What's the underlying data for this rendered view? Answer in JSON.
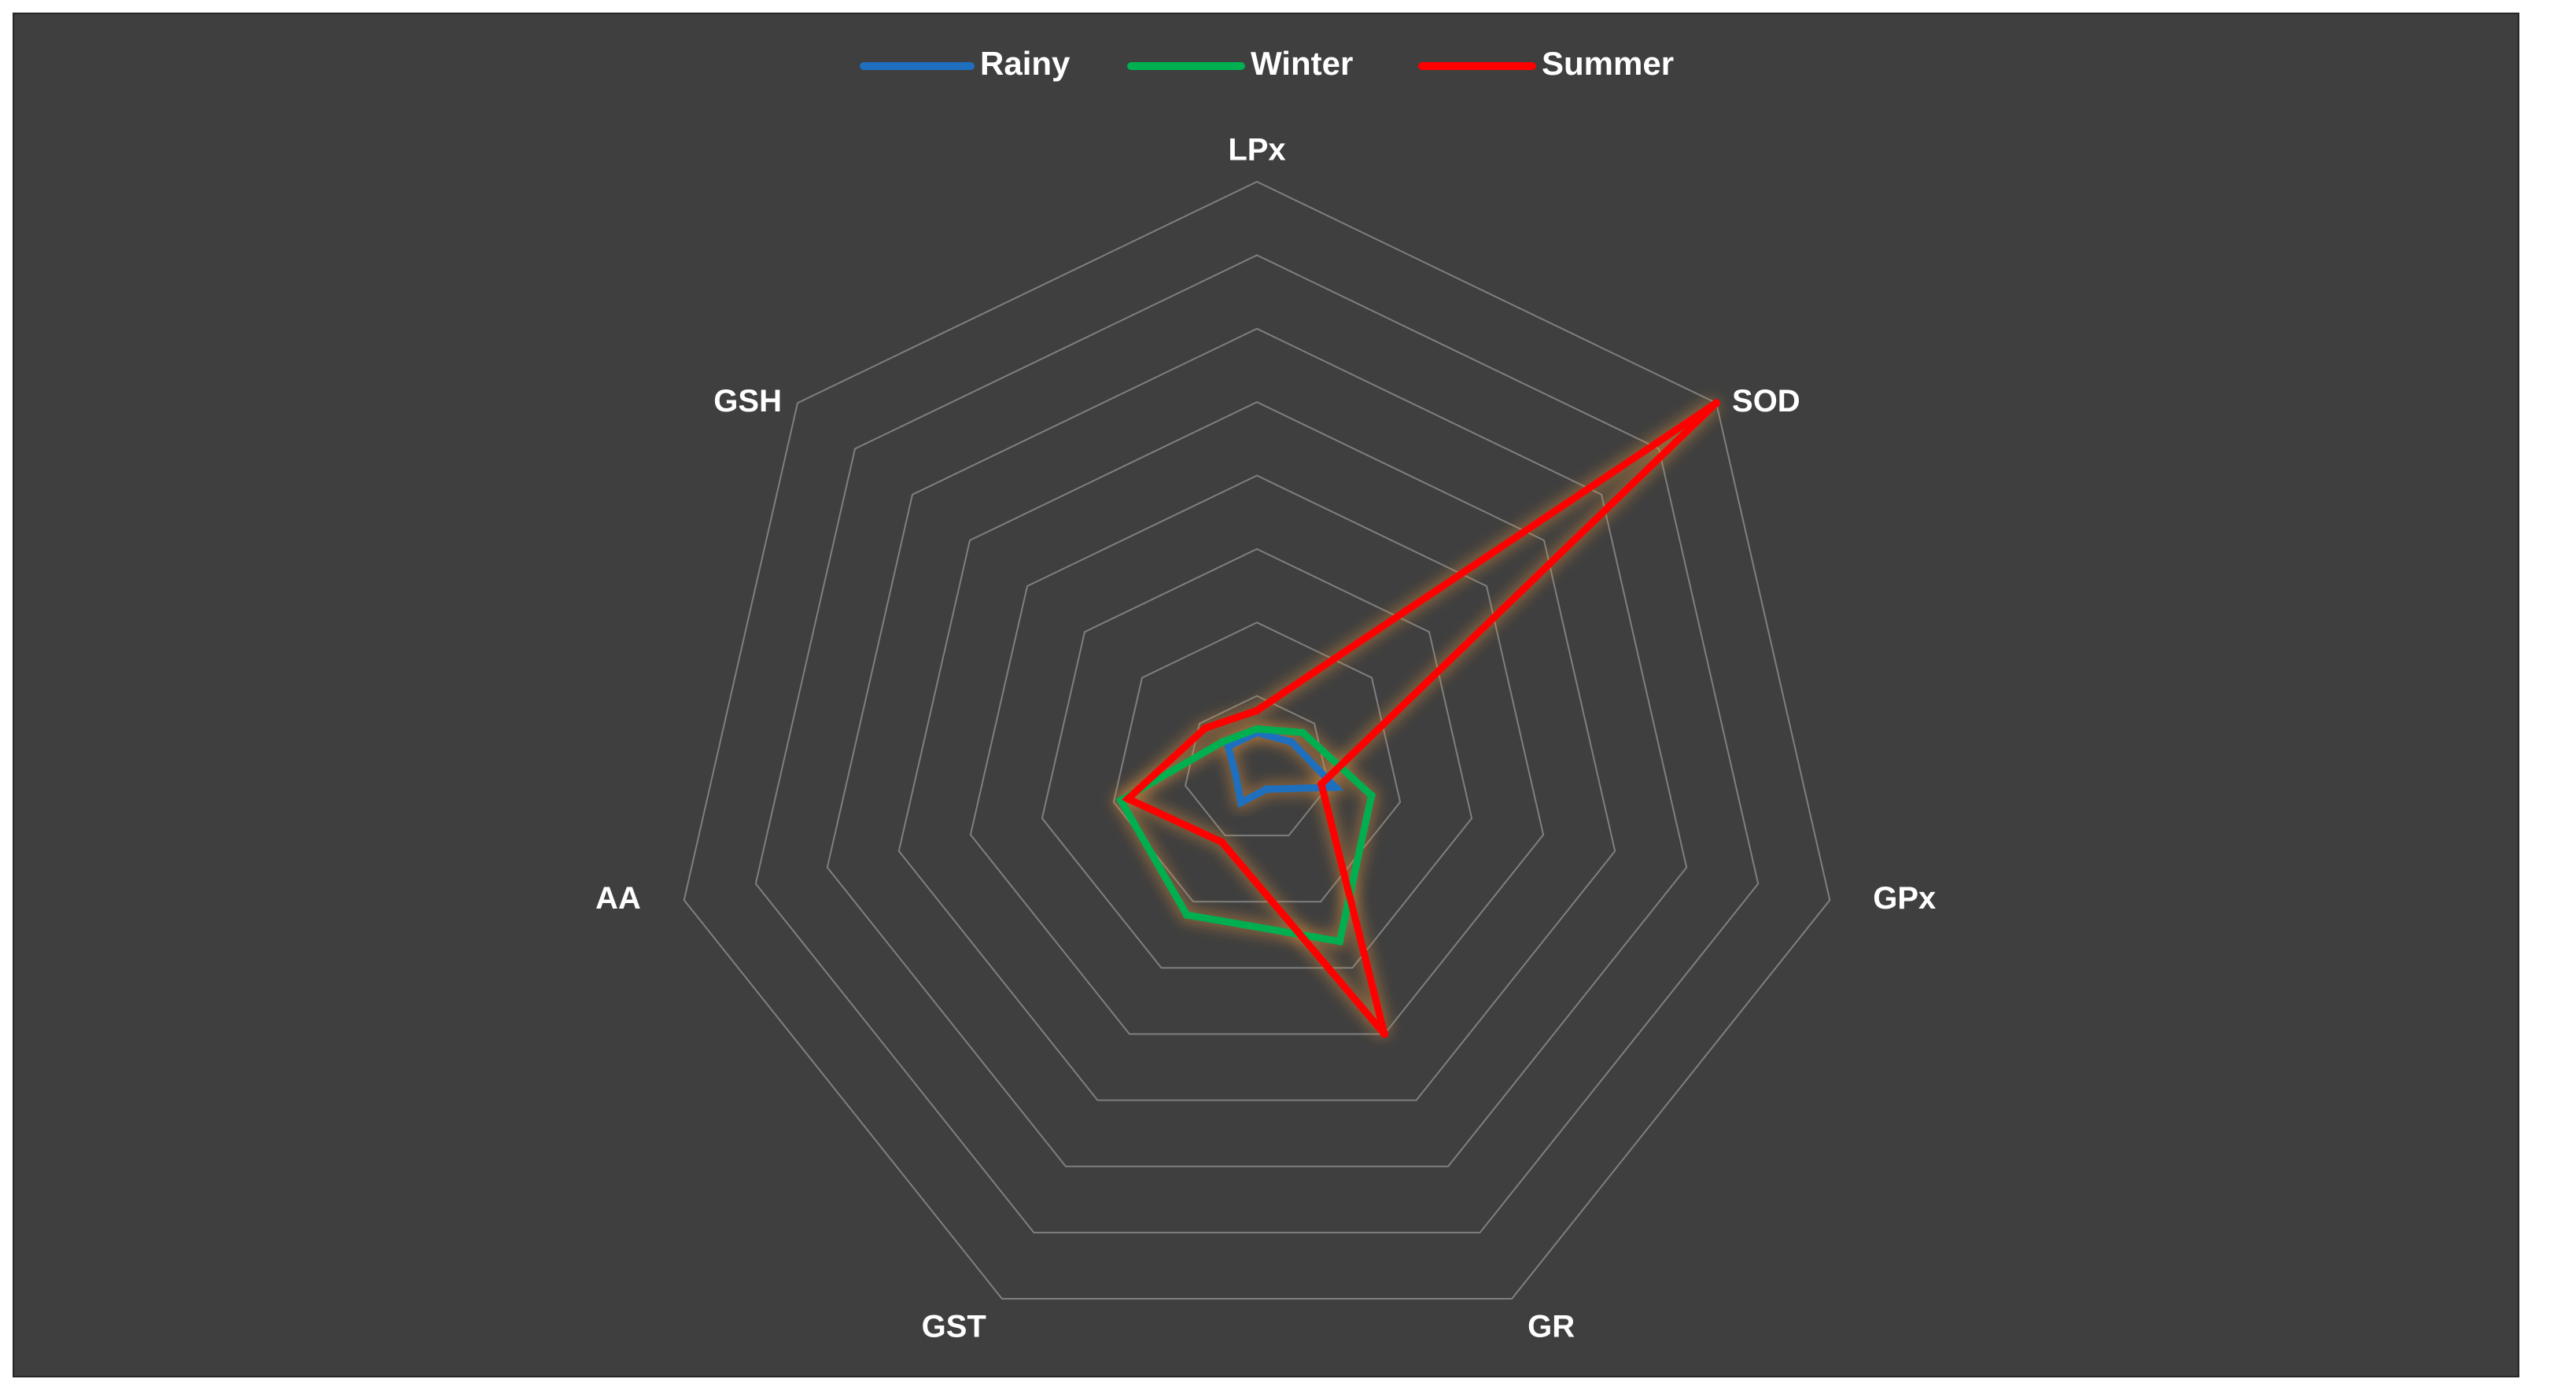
{
  "chart_data": {
    "type": "radar",
    "title": "",
    "axes": [
      "LPx",
      "SOD",
      "GPx",
      "GR",
      "GST",
      "AA",
      "GSH"
    ],
    "rlim": [
      0,
      8
    ],
    "grid": true,
    "grid_rings": 8,
    "legend_position": "top-center",
    "series": [
      {
        "name": "Rainy",
        "color": "#1f6fbf",
        "values": [
          0.5,
          0.6,
          1.1,
          0.3,
          0.5,
          0.3,
          0.5
        ]
      },
      {
        "name": "Winter",
        "color": "#00b050",
        "values": [
          0.55,
          0.8,
          1.6,
          2.6,
          2.2,
          1.9,
          0.6
        ]
      },
      {
        "name": "Summer",
        "color": "#ff0000",
        "values": [
          0.8,
          8.0,
          0.9,
          4.0,
          1.1,
          1.8,
          0.9
        ]
      }
    ]
  }
}
